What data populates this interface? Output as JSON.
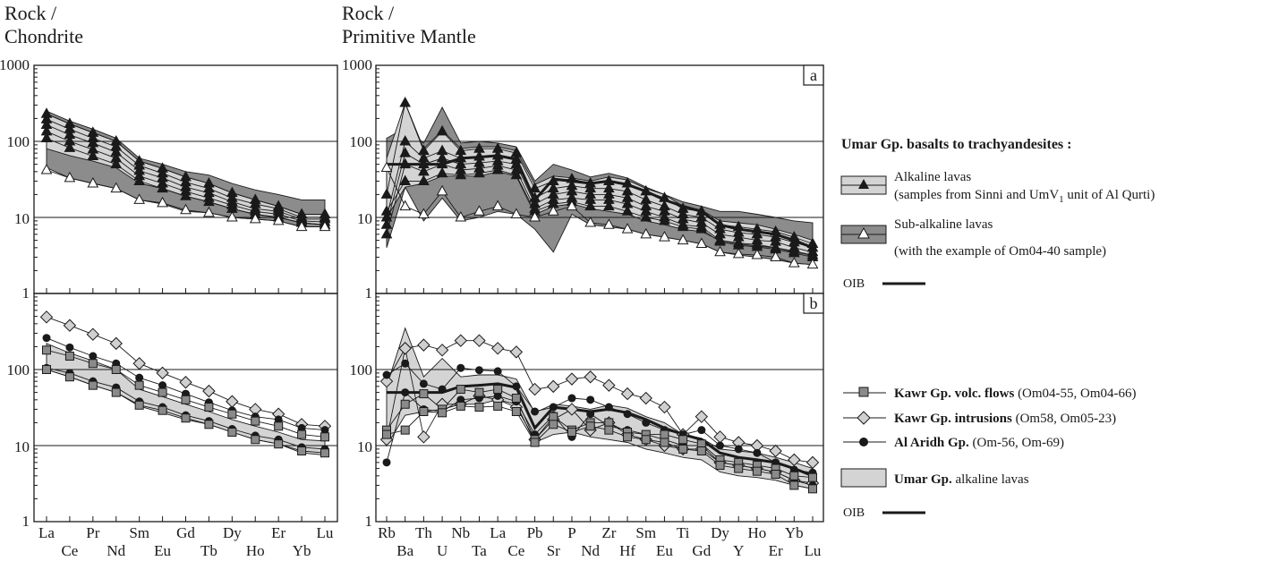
{
  "figure": {
    "left_ylabel_line1": "Rock /",
    "left_ylabel_line2": "Chondrite",
    "right_ylabel_line1": "Rock /",
    "right_ylabel_line2": "Primitive Mantle",
    "panel_a_label": "a",
    "panel_b_label": "b",
    "yticks": [
      "1000",
      "100",
      "10",
      "1"
    ]
  },
  "legend_top": {
    "title": "Umar Gp. basalts to trachyandesites :",
    "alkaline_line1": "Alkaline lavas",
    "alkaline_line2_pre": "(samples from Sinni and UmV",
    "alkaline_line2_sub": "1",
    "alkaline_line2_post": " unit of Al Qurti)",
    "subalkaline_line1": "Sub-alkaline lavas",
    "subalkaline_line2": "(with the example of Om04-40 sample)",
    "oib_label": "OIB"
  },
  "legend_bottom": {
    "kawr_flows_bold": "Kawr Gp. volc. flows",
    "kawr_flows_rest": " (Om04-55, Om04-66)",
    "kawr_intr_bold": "Kawr Gp. intrusions",
    "kawr_intr_rest": " (Om58, Om05-23)",
    "aridh_bold": "Al Aridh Gp.",
    "aridh_rest": " (Om-56, Om-69)",
    "umar_bold": "Umar Gp.",
    "umar_rest": " alkaline lavas",
    "oib_label": "OIB"
  },
  "colors": {
    "alkaline_fill": "#d4d4d4",
    "subalkaline_fill": "#8c8c8c",
    "line": "#1a1a1a",
    "square_fill": "#8a8a8a",
    "diamond_fill": "#d0d0d0"
  },
  "chart_data": [
    {
      "id": "chondrite-a",
      "type": "line",
      "ylabel": "Rock / Chondrite",
      "yscale": "log",
      "ylim": [
        1,
        1000
      ],
      "categories": [
        "La",
        "Ce",
        "Pr",
        "Nd",
        "Sm",
        "Eu",
        "Gd",
        "Tb",
        "Dy",
        "Ho",
        "Er",
        "Yb",
        "Lu"
      ],
      "bands": [
        {
          "name": "Sub-alkaline lavas",
          "lower": [
            45,
            33,
            28,
            24,
            17,
            15,
            12,
            11.5,
            10,
            9.5,
            9,
            7.5,
            7.5
          ],
          "upper": [
            250,
            185,
            145,
            110,
            60,
            50,
            40,
            36,
            28,
            23,
            20,
            17,
            17
          ]
        },
        {
          "name": "Alkaline lavas",
          "lower": [
            80,
            65,
            55,
            45,
            28,
            24,
            19,
            16,
            13,
            11,
            10,
            8.5,
            8
          ],
          "upper": [
            230,
            170,
            130,
            100,
            55,
            44,
            34,
            28,
            21,
            17,
            14,
            11,
            11
          ]
        }
      ],
      "series": [
        {
          "marker": "triangle-filled",
          "values": [
            230,
            170,
            130,
            100,
            55,
            44,
            34,
            28,
            21,
            17,
            14,
            11,
            11
          ]
        },
        {
          "marker": "triangle-filled",
          "values": [
            195,
            145,
            110,
            85,
            48,
            38,
            29,
            24,
            18,
            15,
            13,
            10,
            10
          ]
        },
        {
          "marker": "triangle-filled",
          "values": [
            165,
            122,
            95,
            72,
            41,
            33,
            25,
            21,
            16,
            13,
            12,
            9.5,
            9.5
          ]
        },
        {
          "marker": "triangle-filled",
          "values": [
            135,
            100,
            78,
            60,
            35,
            28,
            22,
            18,
            14.5,
            12,
            11,
            9,
            8.7
          ]
        },
        {
          "marker": "triangle-filled",
          "values": [
            110,
            82,
            64,
            50,
            30,
            24,
            19,
            16,
            13,
            11,
            10,
            8.5,
            8
          ]
        },
        {
          "marker": "triangle-open",
          "values": [
            42,
            33,
            28,
            24,
            17,
            15.5,
            12.5,
            11.5,
            10,
            9.5,
            9,
            7.5,
            7.5
          ]
        }
      ]
    },
    {
      "id": "mantle-a",
      "type": "line",
      "ylabel": "Rock / Primitive Mantle",
      "yscale": "log",
      "ylim": [
        1,
        1000
      ],
      "panel_label": "a",
      "categories": [
        "Rb",
        "Ba",
        "Th",
        "U",
        "Nb",
        "Ta",
        "La",
        "Ce",
        "Pb",
        "Sr",
        "P",
        "Nd",
        "Zr",
        "Hf",
        "Sm",
        "Eu",
        "Ti",
        "Gd",
        "Dy",
        "Y",
        "Ho",
        "Er",
        "Yb",
        "Lu"
      ],
      "bands": [
        {
          "name": "Sub-alkaline lavas",
          "lower": [
            4,
            25,
            9,
            18,
            9,
            10,
            12,
            11,
            7,
            3.5,
            11,
            8,
            7.5,
            7,
            6,
            5.5,
            5,
            4.5,
            3.5,
            3.2,
            3,
            2.8,
            2.5,
            2.4
          ],
          "upper": [
            110,
            150,
            95,
            280,
            95,
            100,
            95,
            85,
            30,
            50,
            42,
            34,
            38,
            33,
            25,
            20,
            16,
            14,
            12,
            12,
            11,
            10,
            9,
            8.5
          ]
        },
        {
          "name": "Alkaline lavas",
          "lower": [
            10,
            25,
            28,
            35,
            35,
            35,
            40,
            35,
            11,
            14,
            15,
            13,
            12,
            11,
            9,
            8,
            7,
            6.5,
            5,
            4.5,
            4.2,
            4,
            3.5,
            3.2
          ],
          "upper": [
            60,
            320,
            80,
            140,
            80,
            85,
            85,
            75,
            27,
            35,
            33,
            30,
            34,
            31,
            24,
            20,
            14,
            12.5,
            9,
            8.5,
            8,
            7,
            6,
            5
          ]
        }
      ],
      "series": [
        {
          "marker": "triangle-filled",
          "values": [
            20,
            320,
            75,
            135,
            75,
            80,
            80,
            70,
            24,
            30,
            32,
            28,
            30,
            28,
            22,
            18,
            13,
            12,
            8,
            7.5,
            7,
            6.5,
            5.5,
            4.5
          ]
        },
        {
          "marker": "triangle-filled",
          "values": [
            10,
            100,
            60,
            75,
            60,
            63,
            65,
            58,
            18,
            24,
            26,
            24,
            24,
            22,
            17,
            14,
            11,
            10,
            7,
            6.3,
            6,
            5.5,
            4.7,
            4
          ]
        },
        {
          "marker": "triangle-filled",
          "values": [
            8,
            70,
            50,
            60,
            50,
            52,
            55,
            50,
            15,
            20,
            22,
            20,
            20,
            18,
            14,
            12,
            9.5,
            8.5,
            6,
            5.5,
            5,
            4.8,
            4,
            3.5
          ]
        },
        {
          "marker": "triangle-filled",
          "values": [
            6,
            50,
            40,
            50,
            42,
            44,
            48,
            42,
            13,
            17,
            18,
            17,
            17,
            15,
            12,
            10,
            8,
            7.5,
            5,
            4.6,
            4.4,
            4,
            3.6,
            3.2
          ]
        },
        {
          "marker": "triangle-filled",
          "values": [
            12,
            30,
            30,
            38,
            36,
            38,
            42,
            36,
            12,
            15,
            16,
            14,
            14,
            12,
            10,
            9,
            7.5,
            7,
            4.8,
            4.3,
            4.1,
            3.8,
            3.4,
            3
          ]
        },
        {
          "marker": "triangle-open",
          "values": [
            45,
            14,
            11,
            22,
            10,
            12,
            14,
            11,
            10,
            12,
            14,
            8.5,
            8,
            7,
            6,
            5.5,
            5,
            4.5,
            3.5,
            3.3,
            3.2,
            3,
            2.5,
            2.4
          ]
        }
      ],
      "oib": [
        50,
        50,
        50,
        50,
        60,
        62,
        65,
        58,
        17,
        32,
        30,
        28,
        30,
        27,
        22,
        17,
        14,
        12,
        8,
        7,
        6.5,
        6,
        5,
        4
      ]
    },
    {
      "id": "chondrite-b",
      "type": "line",
      "ylabel": "Rock / Chondrite",
      "yscale": "log",
      "ylim": [
        1,
        1000
      ],
      "categories": [
        "La",
        "Ce",
        "Pr",
        "Nd",
        "Sm",
        "Eu",
        "Gd",
        "Tb",
        "Dy",
        "Ho",
        "Er",
        "Yb",
        "Lu"
      ],
      "bands": [
        {
          "name": "Umar Gp. alkaline lavas",
          "lower": [
            100,
            80,
            62,
            50,
            33,
            27,
            22,
            19,
            15,
            12,
            10.5,
            8,
            7.5
          ],
          "upper": [
            220,
            165,
            130,
            100,
            55,
            44,
            35,
            28,
            22,
            18,
            15,
            12,
            11.5
          ]
        }
      ],
      "series": [
        {
          "name": "Kawr Gp. intrusions",
          "marker": "diamond",
          "values": [
            490,
            380,
            290,
            220,
            120,
            90,
            68,
            52,
            38,
            30,
            26,
            19,
            18
          ]
        },
        {
          "name": "Al Aridh Gp.",
          "marker": "circle",
          "values": [
            260,
            195,
            150,
            120,
            78,
            62,
            48,
            37,
            29,
            24,
            22,
            17,
            16
          ]
        },
        {
          "name": "Kawr Gp. volc. flows",
          "marker": "square",
          "values": [
            180,
            150,
            120,
            100,
            62,
            50,
            40,
            32,
            26,
            21,
            18,
            14,
            13
          ]
        },
        {
          "name": "Al Aridh Gp.",
          "marker": "circle",
          "values": [
            105,
            90,
            70,
            58,
            38,
            32,
            25,
            21,
            16.5,
            13.5,
            12,
            9.5,
            9
          ]
        },
        {
          "name": "Kawr Gp. volc. flows",
          "marker": "square",
          "values": [
            100,
            80,
            62,
            50,
            34,
            29,
            23,
            19,
            15,
            12,
            10.5,
            8.5,
            8
          ]
        }
      ]
    },
    {
      "id": "mantle-b",
      "type": "line",
      "ylabel": "Rock / Primitive Mantle",
      "yscale": "log",
      "ylim": [
        1,
        1000
      ],
      "panel_label": "b",
      "categories": [
        "Rb",
        "Ba",
        "Th",
        "U",
        "Nb",
        "Ta",
        "La",
        "Ce",
        "Pb",
        "Sr",
        "P",
        "Nd",
        "Zr",
        "Hf",
        "Sm",
        "Eu",
        "Ti",
        "Gd",
        "Dy",
        "Y",
        "Ho",
        "Er",
        "Yb",
        "Lu"
      ],
      "bands": [
        {
          "name": "Umar Gp. alkaline lavas",
          "lower": [
            10,
            25,
            28,
            30,
            35,
            35,
            40,
            35,
            11,
            14,
            15,
            13,
            12,
            11,
            9,
            8,
            7,
            6.5,
            4.5,
            4,
            3.8,
            3.5,
            3,
            2.7
          ],
          "upper": [
            60,
            350,
            80,
            140,
            80,
            85,
            85,
            75,
            27,
            35,
            33,
            30,
            34,
            31,
            24,
            20,
            14,
            12.5,
            9,
            8.5,
            8,
            7,
            6,
            5
          ]
        }
      ],
      "series": [
        {
          "name": "Kawr Gp. intrusions",
          "marker": "diamond",
          "values": [
            70,
            190,
            210,
            180,
            240,
            240,
            190,
            170,
            55,
            60,
            75,
            80,
            62,
            48,
            42,
            32,
            14,
            24,
            13,
            11,
            10,
            8.5,
            6.5,
            6
          ]
        },
        {
          "name": "Kawr Gp. intrusions",
          "marker": "diamond",
          "values": [
            12,
            190,
            13,
            35,
            35,
            45,
            40,
            32,
            12,
            22,
            30,
            16,
            20,
            14,
            12,
            10,
            9,
            9,
            6,
            5.5,
            5,
            4.5,
            3.5,
            3.2
          ]
        },
        {
          "name": "Al Aridh Gp.",
          "marker": "circle",
          "values": [
            85,
            120,
            65,
            55,
            105,
            98,
            95,
            60,
            28,
            32,
            42,
            40,
            32,
            26,
            20,
            16,
            14,
            16,
            10,
            9,
            8,
            6,
            4.8,
            4.4
          ]
        },
        {
          "name": "Al Aridh Gp.",
          "marker": "circle",
          "values": [
            6,
            50,
            30,
            28,
            40,
            42,
            45,
            38,
            14,
            25,
            13,
            26,
            18,
            16,
            14,
            12,
            10,
            10,
            6,
            5.5,
            5,
            4.5,
            3.5,
            3
          ]
        },
        {
          "name": "Kawr Gp. volc. flows",
          "marker": "square",
          "values": [
            16,
            35,
            48,
            30,
            55,
            50,
            55,
            42,
            12,
            24,
            16,
            20,
            20,
            15,
            14,
            14,
            12,
            10.5,
            6.5,
            6,
            5.5,
            5,
            4,
            3.8
          ]
        },
        {
          "name": "Kawr Gp. volc. flows",
          "marker": "square",
          "values": [
            14,
            16,
            28,
            27,
            33,
            32,
            33,
            28,
            11,
            19,
            15,
            18,
            16,
            13,
            12,
            11,
            9,
            8.5,
            5.5,
            5,
            4.6,
            4.2,
            3,
            2.7
          ]
        }
      ],
      "oib": [
        50,
        50,
        50,
        50,
        60,
        62,
        65,
        58,
        17,
        32,
        30,
        28,
        30,
        27,
        22,
        17,
        14,
        12,
        8,
        7,
        6.5,
        6,
        5,
        4
      ]
    }
  ]
}
